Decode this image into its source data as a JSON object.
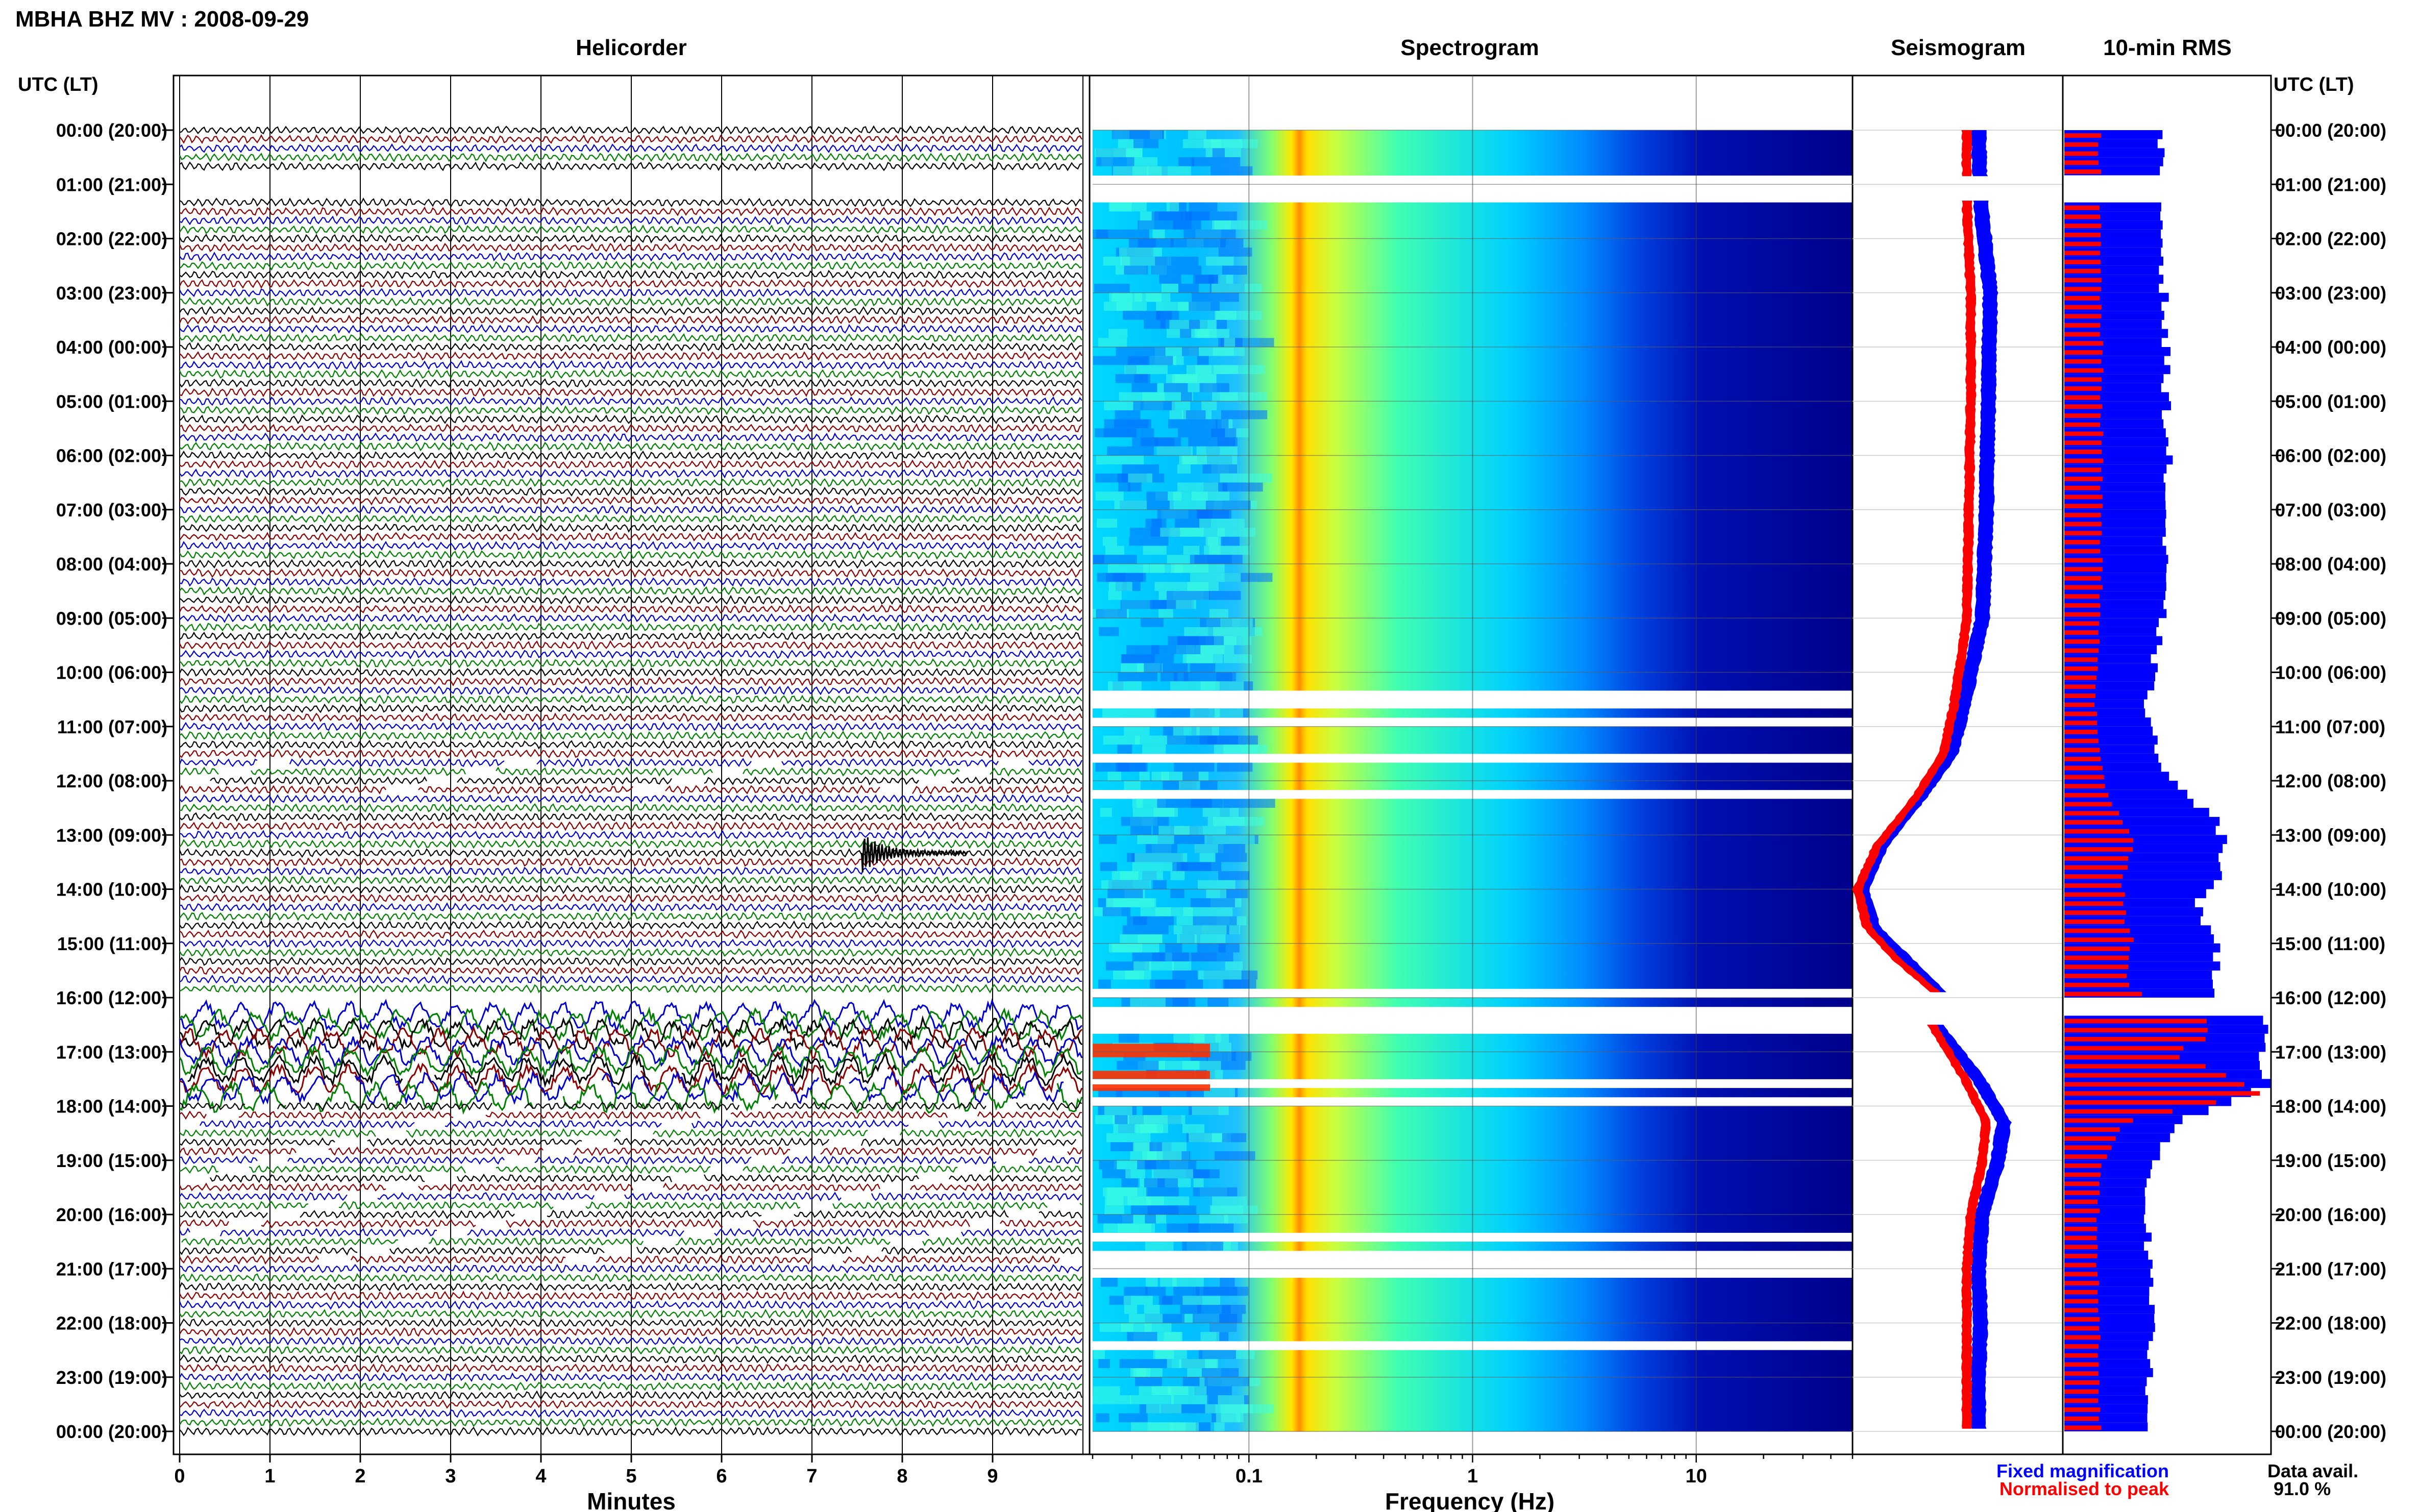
{
  "figure_title": "MBHA BHZ MV : 2008-09-29",
  "utc_header_left": "UTC (LT)",
  "utc_header_right": "UTC (LT)",
  "hour_labels": [
    "00:00 (20:00)",
    "01:00 (21:00)",
    "02:00 (22:00)",
    "03:00 (23:00)",
    "04:00 (00:00)",
    "05:00 (01:00)",
    "06:00 (02:00)",
    "07:00 (03:00)",
    "08:00 (04:00)",
    "09:00 (05:00)",
    "10:00 (06:00)",
    "11:00 (07:00)",
    "12:00 (08:00)",
    "13:00 (09:00)",
    "14:00 (10:00)",
    "15:00 (11:00)",
    "16:00 (12:00)",
    "17:00 (13:00)",
    "18:00 (14:00)",
    "19:00 (15:00)",
    "20:00 (16:00)",
    "21:00 (17:00)",
    "22:00 (18:00)",
    "23:00 (19:00)",
    "00:00 (20:00)"
  ],
  "legend": {
    "fixed": "Fixed magnification",
    "normalised": "Normalised to peak",
    "fixed_color": "#0000ff",
    "normalised_color": "#ff0000"
  },
  "availability": {
    "label": "Data avail.",
    "value": "91.0 %"
  },
  "chart_data": [
    {
      "type": "line",
      "panel": "helicorder",
      "title": "Helicorder",
      "xlabel": "Minutes",
      "ylabel": "UTC (LT)",
      "x_ticks": [
        "0",
        "1",
        "2",
        "3",
        "4",
        "5",
        "6",
        "7",
        "8",
        "9"
      ],
      "xlim": [
        0,
        10
      ],
      "trace_colors": [
        "#000000",
        "#8b0000",
        "#0000cd",
        "#008000"
      ],
      "rows_per_hour": 6,
      "gaps_hours": [
        [
          0.75,
          1.25
        ],
        [
          15.85,
          16.3
        ]
      ],
      "event": {
        "hour": 13.33,
        "minute": 7.55,
        "color": "#000000"
      },
      "high_amplitude_hours": [
        16.3,
        17.9
      ]
    },
    {
      "type": "heatmap",
      "panel": "spectrogram",
      "title": "Spectrogram",
      "xlabel": "Frequency (Hz)",
      "x_scale": "log",
      "x_ticks": [
        "0.1",
        "1",
        "10"
      ],
      "xlim": [
        0.02,
        50
      ],
      "colormap": [
        "#00008b",
        "#0000ff",
        "#00bfff",
        "#00ffff",
        "#7fff7f",
        "#ffff00",
        "#ff7f00",
        "#ff0000"
      ],
      "peak_band_hz": [
        0.18,
        0.22
      ],
      "gaps_hours": [
        [
          0.9,
          1.3
        ],
        [
          10.3,
          10.45
        ],
        [
          10.55,
          10.65
        ],
        [
          10.9,
          11.0
        ],
        [
          11.5,
          11.62
        ],
        [
          12.2,
          12.4
        ],
        [
          15.75,
          16.0
        ],
        [
          16.1,
          16.6
        ],
        [
          17.5,
          17.6
        ],
        [
          17.9,
          18.0
        ],
        [
          18.95,
          19.05
        ],
        [
          20.35,
          20.45
        ],
        [
          20.7,
          21.2
        ],
        [
          22.4,
          22.45
        ]
      ]
    },
    {
      "type": "area",
      "panel": "seismogram",
      "title": "Seismogram",
      "series": [
        {
          "name": "Fixed magnification",
          "color": "#0000ff",
          "hours": [
            0,
            1.3,
            3,
            5,
            7,
            9,
            10.5,
            11.5,
            12.3,
            13.2,
            14,
            14.7,
            15.3,
            15.9,
            16.5,
            17.5,
            18.3,
            19,
            20,
            21,
            22,
            23,
            24
          ],
          "values": [
            0.62,
            0.63,
            0.68,
            0.67,
            0.66,
            0.64,
            0.55,
            0.48,
            0.32,
            0.12,
            0.02,
            0.08,
            0.25,
            0.42,
            0.4,
            0.62,
            0.75,
            0.72,
            0.64,
            0.62,
            0.63,
            0.62,
            0.62
          ]
        },
        {
          "name": "Normalised to peak",
          "color": "#ff0000",
          "hours": [
            0,
            1.3,
            3,
            5,
            7,
            9,
            10.5,
            11.5,
            12.3,
            13.2,
            14,
            14.7,
            15.3,
            15.9,
            16.5,
            17.5,
            18.3,
            19,
            20,
            21,
            22,
            23,
            24
          ],
          "values": [
            0.56,
            0.56,
            0.58,
            0.58,
            0.57,
            0.56,
            0.5,
            0.44,
            0.3,
            0.1,
            0.0,
            0.05,
            0.2,
            0.4,
            0.38,
            0.55,
            0.66,
            0.64,
            0.58,
            0.56,
            0.56,
            0.56,
            0.56
          ]
        }
      ]
    },
    {
      "type": "bar",
      "panel": "rms",
      "title": "10-min RMS",
      "series": [
        {
          "name": "Fixed magnification",
          "color": "#0000ff",
          "hours": [
            0,
            1.3,
            4,
            6,
            8,
            9,
            10.5,
            11.5,
            12.2,
            13,
            13.5,
            14.2,
            15,
            15.7,
            16.4,
            17,
            17.6,
            18.2,
            19,
            20,
            21,
            22,
            23,
            24
          ],
          "values": [
            0.46,
            0.47,
            0.49,
            0.5,
            0.48,
            0.47,
            0.4,
            0.45,
            0.58,
            0.82,
            0.76,
            0.64,
            0.77,
            0.7,
            1.0,
            0.9,
            1.0,
            0.55,
            0.42,
            0.4,
            0.41,
            0.42,
            0.41,
            0.42
          ]
        },
        {
          "name": "Normalised to peak",
          "color": "#ff0000",
          "hours": [
            0,
            1.3,
            4,
            6,
            8,
            9,
            10.5,
            11.5,
            12.2,
            13,
            13.5,
            14.2,
            15,
            15.7,
            16.4,
            17,
            17.6,
            18.2,
            19,
            20,
            21,
            22,
            23,
            24
          ],
          "values": [
            0.17,
            0.17,
            0.18,
            0.18,
            0.18,
            0.17,
            0.15,
            0.17,
            0.22,
            0.34,
            0.3,
            0.28,
            0.33,
            0.3,
            0.74,
            0.55,
            0.98,
            0.28,
            0.18,
            0.16,
            0.16,
            0.17,
            0.17,
            0.17
          ]
        }
      ]
    }
  ]
}
